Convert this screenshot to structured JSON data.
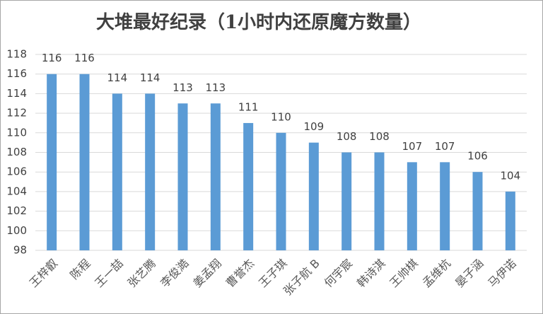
{
  "chart_data": {
    "type": "bar",
    "title": "大堆最好纪录（1小时内还原魔方数量）",
    "categories": [
      "王梓叡",
      "陈程",
      "王一喆",
      "张艺腾",
      "李俊澔",
      "姜孟翔",
      "曹誉杰",
      "王子琪",
      "张子航 B",
      "何宇宸",
      "韩诗淇",
      "王帅棋",
      "孟维杭",
      "晏子涵",
      "马伊诺"
    ],
    "values": [
      116,
      116,
      114,
      114,
      113,
      113,
      111,
      110,
      109,
      108,
      108,
      107,
      107,
      106,
      104
    ],
    "color": "#5b9bd5",
    "ylim": [
      98,
      118
    ],
    "yticks": [
      98,
      100,
      102,
      104,
      106,
      108,
      110,
      112,
      114,
      116,
      118
    ],
    "grid": true
  }
}
